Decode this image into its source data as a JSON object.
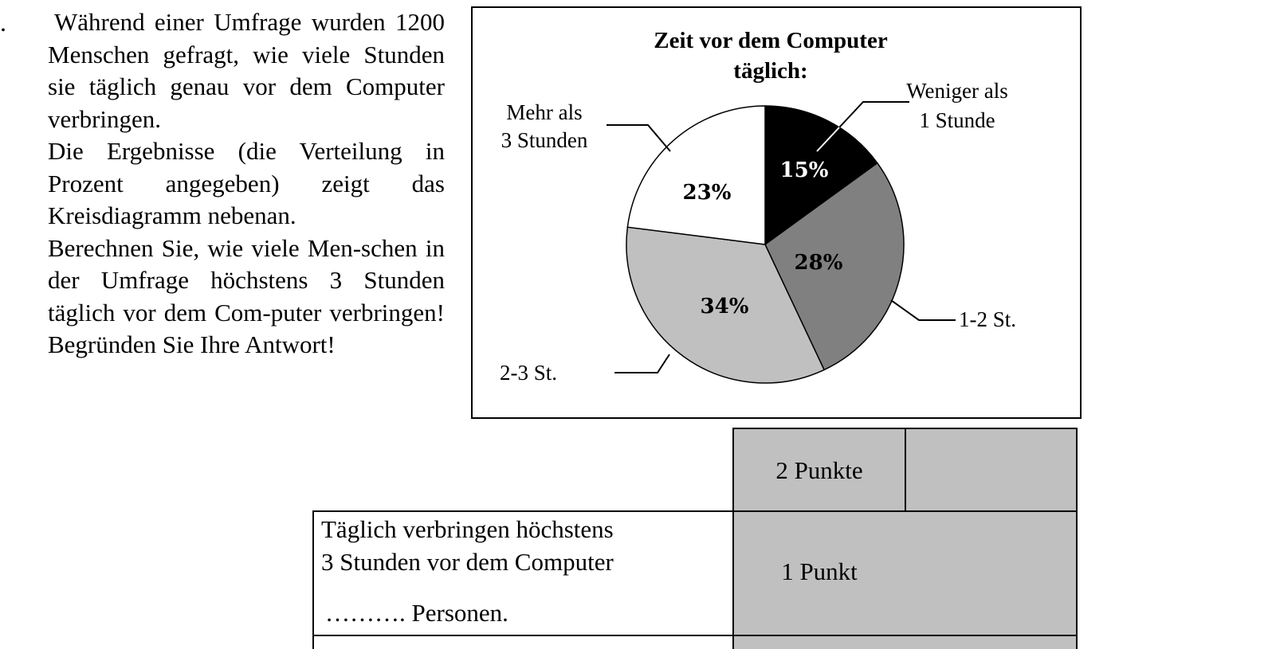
{
  "task": {
    "number": ".",
    "paragraphs": [
      "Während einer Umfrage wurden 1200 Menschen gefragt, wie viele Stunden sie täglich genau vor dem Computer verbringen.",
      "Die Ergebnisse (die Verteilung in Prozent angegeben) zeigt das Kreisdiagramm nebenan.",
      "Berechnen Sie, wie viele Men-schen in der Umfrage höchstens 3 Stunden täglich vor dem Com-puter verbringen! Begründen Sie Ihre Antwort!"
    ]
  },
  "chart_data": {
    "type": "pie",
    "title_lines": [
      "Zeit vor dem Computer",
      "täglich:"
    ],
    "slices": [
      {
        "label": "Weniger als 1 Stunde",
        "label_lines": [
          "Weniger als",
          "1 Stunde"
        ],
        "value": 15,
        "value_label": "15%",
        "color": "#000000",
        "text_color": "#ffffff"
      },
      {
        "label": "1-2 St.",
        "label_lines": [
          "1-2 St."
        ],
        "value": 28,
        "value_label": "28%",
        "color": "#808080",
        "text_color": "#000000"
      },
      {
        "label": "2-3 St.",
        "label_lines": [
          "2-3 St."
        ],
        "value": 34,
        "value_label": "34%",
        "color": "#c0c0c0",
        "text_color": "#000000"
      },
      {
        "label": "Mehr als 3 Stunden",
        "label_lines": [
          "Mehr als",
          "3 Stunden"
        ],
        "value": 23,
        "value_label": "23%",
        "color": "#ffffff",
        "text_color": "#000000"
      }
    ],
    "start_angle_deg": 0,
    "direction": "clockwise"
  },
  "scoring": {
    "row1": {
      "points": "2 Punkte"
    },
    "row2": {
      "answer_lines": [
        "Täglich verbringen höchstens",
        "3 Stunden vor dem Computer"
      ],
      "blank": "………. Personen.",
      "points": "1 Punkt"
    }
  }
}
